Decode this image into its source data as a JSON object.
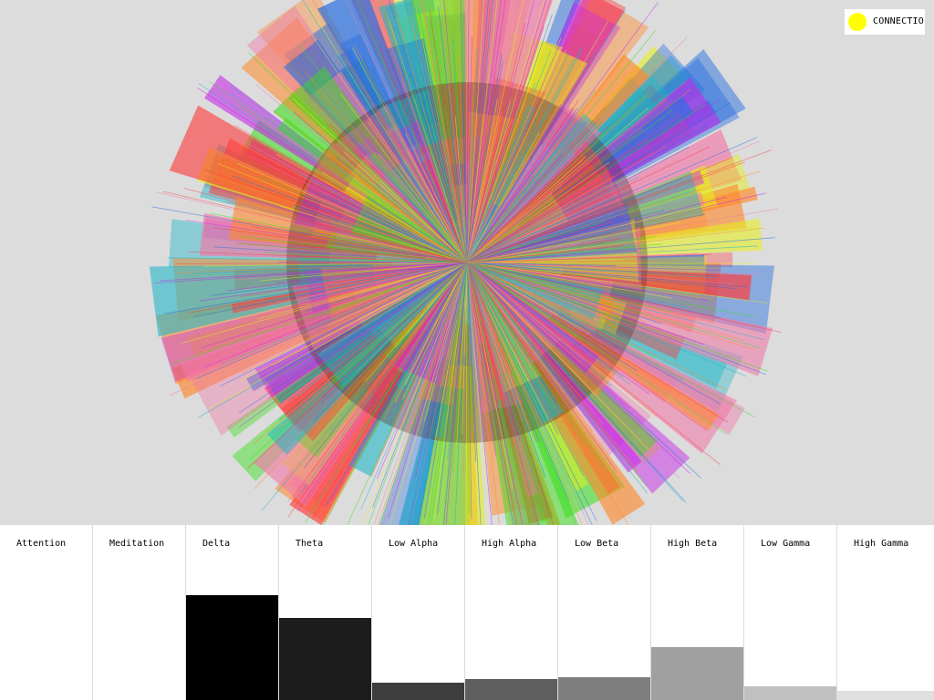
{
  "connection": {
    "label": "CONNECTIO",
    "indicator_color": "#ffff00"
  },
  "visualization": {
    "background": "#dcdcdc",
    "palette": [
      "#ff3b3b",
      "#37e01a",
      "#c628e8",
      "#1ab6c8",
      "#e6f01a",
      "#ff8a2a",
      "#2a6fe0",
      "#f07aa8"
    ]
  },
  "bands": [
    {
      "name": "Attention",
      "level": 0.0,
      "color": "#ffffff"
    },
    {
      "name": "Meditation",
      "level": 0.0,
      "color": "#ffffff"
    },
    {
      "name": "Delta",
      "level": 0.6,
      "color": "#000000"
    },
    {
      "name": "Theta",
      "level": 0.47,
      "color": "#1c1c1c"
    },
    {
      "name": "Low Alpha",
      "level": 0.1,
      "color": "#3d3d3d"
    },
    {
      "name": "High Alpha",
      "level": 0.12,
      "color": "#5f5f5f"
    },
    {
      "name": "Low Beta",
      "level": 0.13,
      "color": "#7f7f7f"
    },
    {
      "name": "High Beta",
      "level": 0.3,
      "color": "#a0a0a0"
    },
    {
      "name": "Low Gamma",
      "level": 0.08,
      "color": "#c0c0c0"
    },
    {
      "name": "High Gamma",
      "level": 0.05,
      "color": "#e0e0e0"
    }
  ]
}
